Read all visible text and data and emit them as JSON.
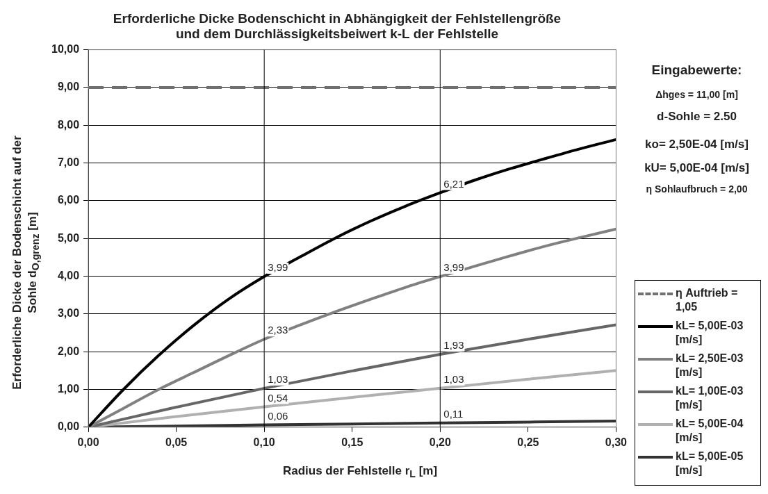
{
  "chart_data": {
    "type": "line",
    "title": [
      "Erforderliche Dicke Bodenschicht in Abhängigkeit der Fehlstellengröße",
      "und dem Durchlässigkeitsbeiwert k-L der Fehlstelle"
    ],
    "xlabel": "Radius der Fehlstelle r$_{L}$ [m]",
    "ylabel": "Erforderliche Dicke der Bodenschicht auf der Sohle d$_{O,grenz}$ [m]",
    "xlim": [
      0,
      0.3
    ],
    "ylim": [
      0,
      10
    ],
    "xticks": [
      {
        "value": 0,
        "label": "0,00"
      },
      {
        "value": 0.05,
        "label": "0,05"
      },
      {
        "value": 0.1,
        "label": "0,10"
      },
      {
        "value": 0.15,
        "label": "0,15"
      },
      {
        "value": 0.2,
        "label": "0,20"
      },
      {
        "value": 0.25,
        "label": "0,25"
      },
      {
        "value": 0.3,
        "label": "0,30"
      }
    ],
    "yticks": [
      {
        "value": 0,
        "label": "0,00"
      },
      {
        "value": 1,
        "label": "1,00"
      },
      {
        "value": 2,
        "label": "2,00"
      },
      {
        "value": 3,
        "label": "3,00"
      },
      {
        "value": 4,
        "label": "4,00"
      },
      {
        "value": 5,
        "label": "5,00"
      },
      {
        "value": 6,
        "label": "6,00"
      },
      {
        "value": 7,
        "label": "7,00"
      },
      {
        "value": 8,
        "label": "8,00"
      },
      {
        "value": 9,
        "label": "9,00"
      },
      {
        "value": 10,
        "label": "10,00"
      }
    ],
    "grid": "y",
    "legend": "right",
    "marker": "none",
    "ref_lines": [
      {
        "axis": "x",
        "value": 0.1,
        "color": "#000000"
      },
      {
        "axis": "x",
        "value": 0.2,
        "color": "#000000"
      }
    ],
    "annotations": [
      "Eingabewerte:",
      "Δhges = 11,00 [m]",
      "d-Sohle = 2.50",
      "ko= 2,50E-04 [m/s]",
      "kU= 5,00E-04 [m/s]",
      "η Sohlaufbruch = 2,00"
    ],
    "series": [
      {
        "name": "η Auftrieb = 1,05",
        "color": "#707070",
        "line_style": "dashed",
        "x": [
          0,
          0.3
        ],
        "values": [
          9,
          9
        ]
      },
      {
        "name": "kL= 5,00E-03 [m/s]",
        "color": "#000000",
        "x": [
          0,
          0.02,
          0.04,
          0.06,
          0.08,
          0.1,
          0.12,
          0.14,
          0.16,
          0.18,
          0.2,
          0.22,
          0.24,
          0.26,
          0.28,
          0.3
        ],
        "values": [
          0,
          1.0,
          1.9,
          2.7,
          3.4,
          3.99,
          4.5,
          5.0,
          5.45,
          5.85,
          6.21,
          6.55,
          6.85,
          7.12,
          7.38,
          7.62
        ],
        "value_labels": [
          null,
          null,
          null,
          null,
          null,
          "3,99",
          null,
          null,
          null,
          null,
          "6,21",
          null,
          null,
          null,
          null,
          null
        ]
      },
      {
        "name": "kL= 2,50E-03 [m/s]",
        "color": "#808080",
        "x": [
          0,
          0.02,
          0.04,
          0.06,
          0.08,
          0.1,
          0.12,
          0.14,
          0.16,
          0.18,
          0.2,
          0.22,
          0.24,
          0.26,
          0.28,
          0.3
        ],
        "values": [
          0,
          0.5,
          1.0,
          1.45,
          1.9,
          2.33,
          2.7,
          3.05,
          3.38,
          3.7,
          3.99,
          4.27,
          4.54,
          4.8,
          5.03,
          5.25
        ],
        "value_labels": [
          null,
          null,
          null,
          null,
          null,
          "2,33",
          null,
          null,
          null,
          null,
          "3,99",
          null,
          null,
          null,
          null,
          null
        ]
      },
      {
        "name": "kL= 1,00E-03 [m/s]",
        "color": "#666666",
        "x": [
          0,
          0.05,
          0.1,
          0.15,
          0.2,
          0.25,
          0.3
        ],
        "values": [
          0,
          0.53,
          1.03,
          1.49,
          1.93,
          2.33,
          2.71
        ],
        "value_labels": [
          null,
          null,
          "1,03",
          null,
          "1,93",
          null,
          null
        ]
      },
      {
        "name": "kL= 5,00E-04 [m/s]",
        "color": "#b0b0b0",
        "x": [
          0,
          0.05,
          0.1,
          0.15,
          0.2,
          0.25,
          0.3
        ],
        "values": [
          0,
          0.28,
          0.54,
          0.79,
          1.03,
          1.27,
          1.5
        ],
        "value_labels": [
          null,
          null,
          "0,54",
          null,
          "1,03",
          null,
          null
        ]
      },
      {
        "name": "kL= 5,00E-05 [m/s]",
        "color": "#333333",
        "x": [
          0,
          0.1,
          0.2,
          0.3
        ],
        "values": [
          0,
          0.06,
          0.11,
          0.16
        ],
        "value_labels": [
          null,
          "0,06",
          "0,11",
          null
        ]
      }
    ]
  }
}
